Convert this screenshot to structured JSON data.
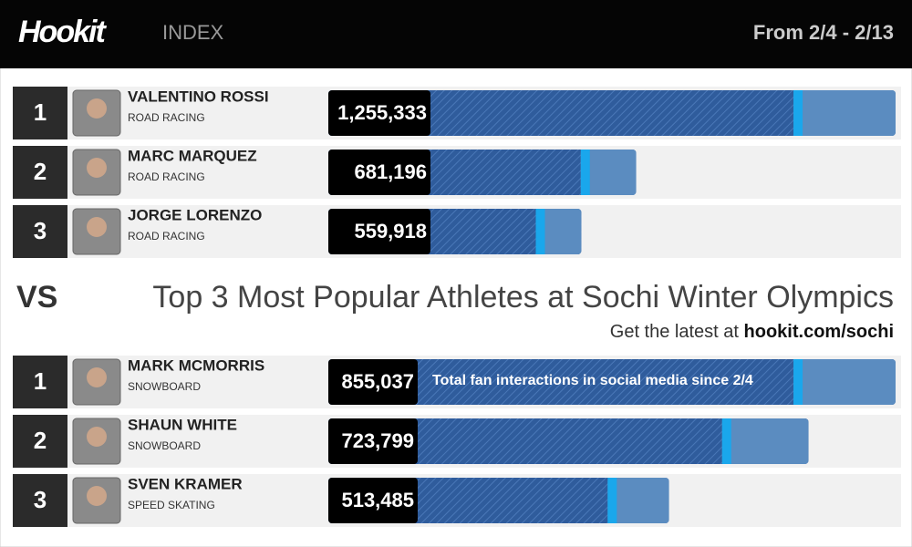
{
  "header": {
    "logo": "Hookit",
    "subtitle": "INDEX",
    "date_range": "From 2/4 - 2/13"
  },
  "versus": {
    "vs": "VS",
    "title": "Top 3 Most Popular Athletes at Sochi Winter Olympics",
    "cta": "Get the latest at",
    "link": "hookit.com/sochi"
  },
  "annotation": "Total fan interactions in social media since 2/4",
  "groups": [
    {
      "athletes": [
        {
          "rank": "1",
          "name": "VALENTINO ROSSI",
          "sport": "ROAD RACING",
          "interactions": {
            "value": 1255333,
            "label": "1,255,333"
          }
        },
        {
          "rank": "2",
          "name": "MARC MARQUEZ",
          "sport": "ROAD RACING",
          "interactions": {
            "value": 681196,
            "label": "681,196"
          }
        },
        {
          "rank": "3",
          "name": "JORGE LORENZO",
          "sport": "ROAD RACING",
          "interactions": {
            "value": 559918,
            "label": "559,918"
          }
        }
      ]
    },
    {
      "athletes": [
        {
          "rank": "1",
          "name": "MARK MCMORRIS",
          "sport": "SNOWBOARD",
          "interactions": {
            "value": 855037,
            "label": "855,037"
          }
        },
        {
          "rank": "2",
          "name": "SHAUN WHITE",
          "sport": "SNOWBOARD",
          "interactions": {
            "value": 723799,
            "label": "723,799"
          }
        },
        {
          "rank": "3",
          "name": "SVEN KRAMER",
          "sport": "SPEED SKATING",
          "interactions": {
            "value": 513485,
            "label": "513,485"
          }
        }
      ]
    }
  ]
}
